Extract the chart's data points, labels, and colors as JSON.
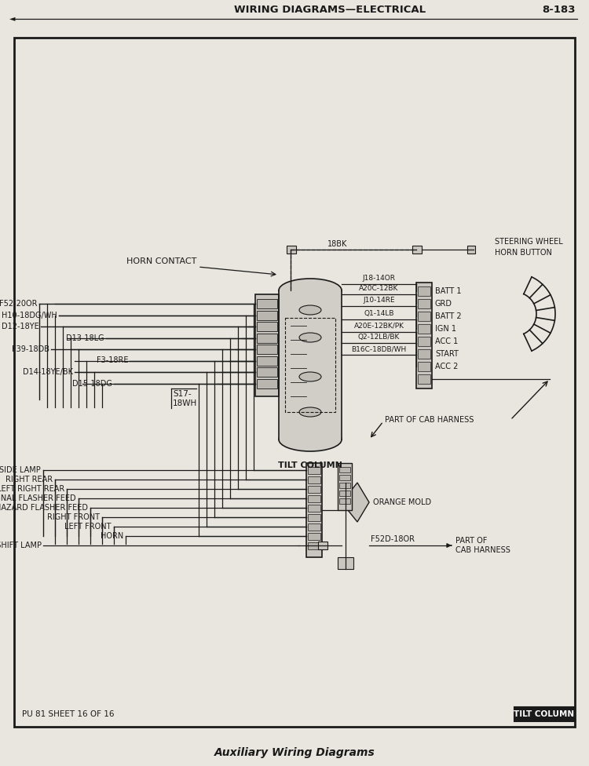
{
  "bg_color": "#e8e6de",
  "wc": "#1a1a1a",
  "header_text": "WIRING DIAGRAMS—ELECTRICAL",
  "page_num": "8-183",
  "footer_left": "PU 81 SHEET 16 OF 16",
  "footer_right": "TILT COLUMN",
  "bottom_caption": "Auxiliary Wiring Diagrams",
  "horn_contact": "HORN CONTACT",
  "horn_wire_label": "18BK",
  "tilt_column": "TILT COLUMN",
  "steering_wheel": "STEERING WHEEL\nHORN BUTTON",
  "part_cab1": "PART OF CAB HARNESS",
  "part_cab2": "PART OF\nCAB HARNESS",
  "orange_mold": "ORANGE MOLD",
  "f52d": "F52D-18OR",
  "s17": "S17-\n18WH",
  "left_wire_labels": [
    "F52-20OR",
    "H10-18DG/WH",
    "D12-18YE",
    "D13-18LG",
    "F39-18DB",
    "F3-18RE",
    "D14-18YE/BK",
    "D15-18DG"
  ],
  "center_wire_labels": [
    "J18-14OR",
    "A20C-12BK",
    "J10-14RE",
    "Q1-14LB",
    "A20E-12BK/PK",
    "Q2-12LB/BK",
    "B16C-18DB/WH"
  ],
  "right_pin_labels": [
    "BATT 1",
    "GRD",
    "BATT 2",
    "IGN 1",
    "ACC 1",
    "START",
    "ACC 2"
  ],
  "bottom_wire_labels": [
    "SIDE LAMP",
    "RIGHT REAR",
    "LEFT RIGHT REAR",
    "TURN SIGNAL FLASHER FEED",
    "HAZARD FLASHER FEED",
    "RIGHT FRONT",
    "LEFT FRONT",
    "HORN",
    "GEAR SHIFT LAMP"
  ]
}
